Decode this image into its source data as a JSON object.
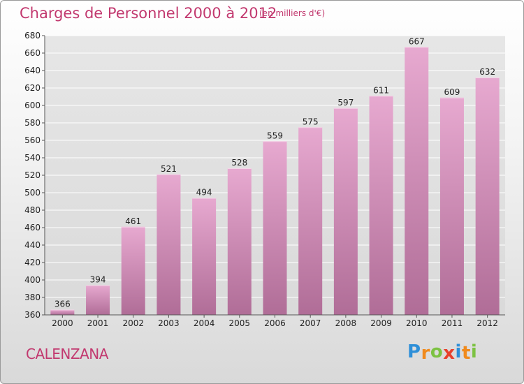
{
  "header": {
    "title": "Charges de Personnel 2000 à 2012",
    "unit_note": "(en milliers d'€)"
  },
  "footer": {
    "commune": "CALENZANA",
    "logo_letters": [
      {
        "char": "P",
        "color": "#2e8fd8"
      },
      {
        "char": "r",
        "color": "#f08a1c"
      },
      {
        "char": "o",
        "color": "#7cc242"
      },
      {
        "char": "x",
        "color": "#e8412c"
      },
      {
        "char": "i",
        "color": "#2e8fd8"
      },
      {
        "char": "t",
        "color": "#f08a1c"
      },
      {
        "char": "i",
        "color": "#7cc242"
      }
    ]
  },
  "colors": {
    "text_accent": "#c2396f",
    "bar_top": "#e7a9d0",
    "bar_bottom": "#b06d97",
    "grid": "#ffffff"
  },
  "chart_data": {
    "type": "bar",
    "categories": [
      "2000",
      "2001",
      "2002",
      "2003",
      "2004",
      "2005",
      "2006",
      "2007",
      "2008",
      "2009",
      "2010",
      "2011",
      "2012"
    ],
    "values": [
      366,
      394,
      461,
      521,
      494,
      528,
      559,
      575,
      597,
      611,
      667,
      609,
      632
    ],
    "ylim": [
      360,
      680
    ],
    "yticks": [
      360,
      380,
      400,
      420,
      440,
      460,
      480,
      500,
      520,
      540,
      560,
      580,
      600,
      620,
      640,
      660,
      680
    ],
    "grid": true,
    "data_labels": true
  }
}
